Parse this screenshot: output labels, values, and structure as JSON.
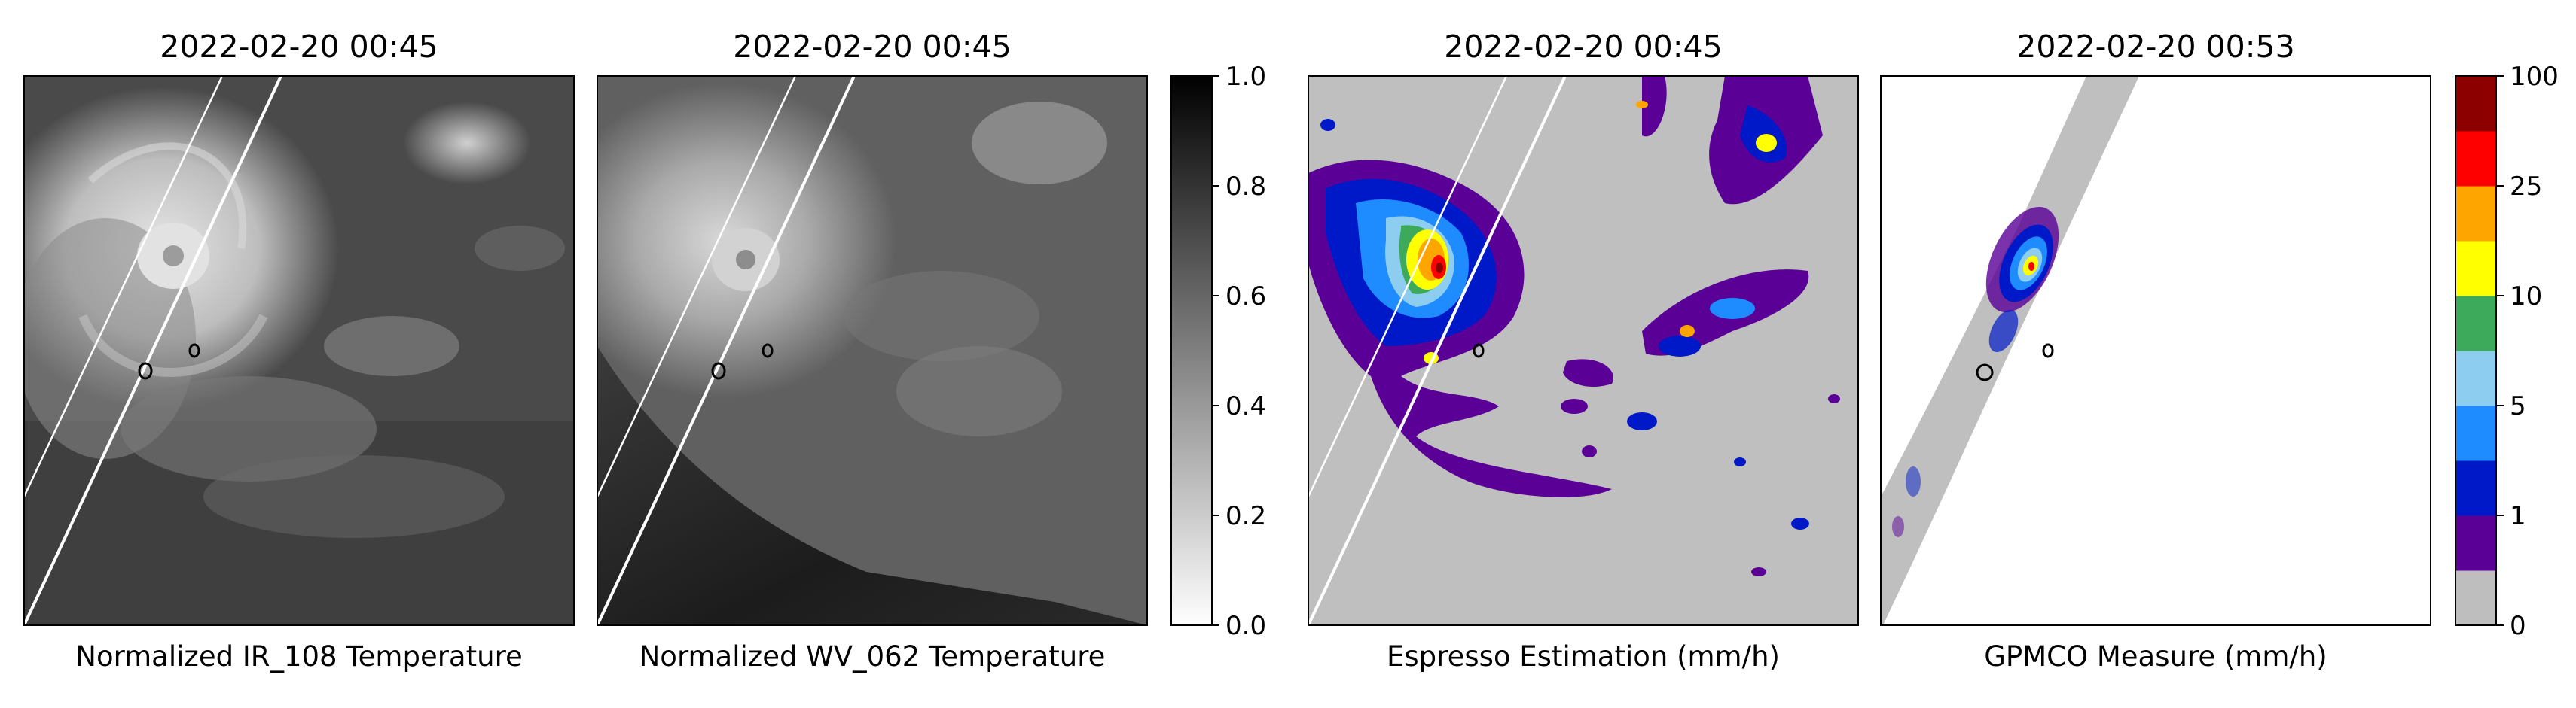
{
  "chart_data": {
    "type": "heatmap",
    "panels": [
      {
        "title": "2022-02-20 00:45",
        "xlabel": "Normalized IR_108 Temperature",
        "colormap": "gray",
        "colorbar": 1
      },
      {
        "title": "2022-02-20 00:45",
        "xlabel": "Normalized WV_062 Temperature",
        "colormap": "gray",
        "colorbar": 1
      },
      {
        "title": "2022-02-20 00:45",
        "xlabel": "Espresso Estimation (mm/h)",
        "colormap": "rain",
        "colorbar": 2
      },
      {
        "title": "2022-02-20 00:53",
        "xlabel": "GPMCO Measure (mm/h)",
        "colormap": "rain",
        "colorbar": 2
      }
    ],
    "colorbars": [
      {
        "type": "continuous",
        "range": [
          0.0,
          1.0
        ],
        "ticks": [
          "0.0",
          "0.2",
          "0.4",
          "0.6",
          "0.8",
          "1.0"
        ],
        "low_color": "#ffffff",
        "high_color": "#000000"
      },
      {
        "type": "discrete",
        "ticks": [
          "0",
          "1",
          "5",
          "10",
          "25",
          "100"
        ],
        "colors": [
          "#bebebe",
          "#5a0096",
          "#0019c8",
          "#1e8cff",
          "#8ccdf0",
          "#3caa5a",
          "#ffff00",
          "#ffa500",
          "#ff0000",
          "#8c0000"
        ]
      }
    ]
  }
}
